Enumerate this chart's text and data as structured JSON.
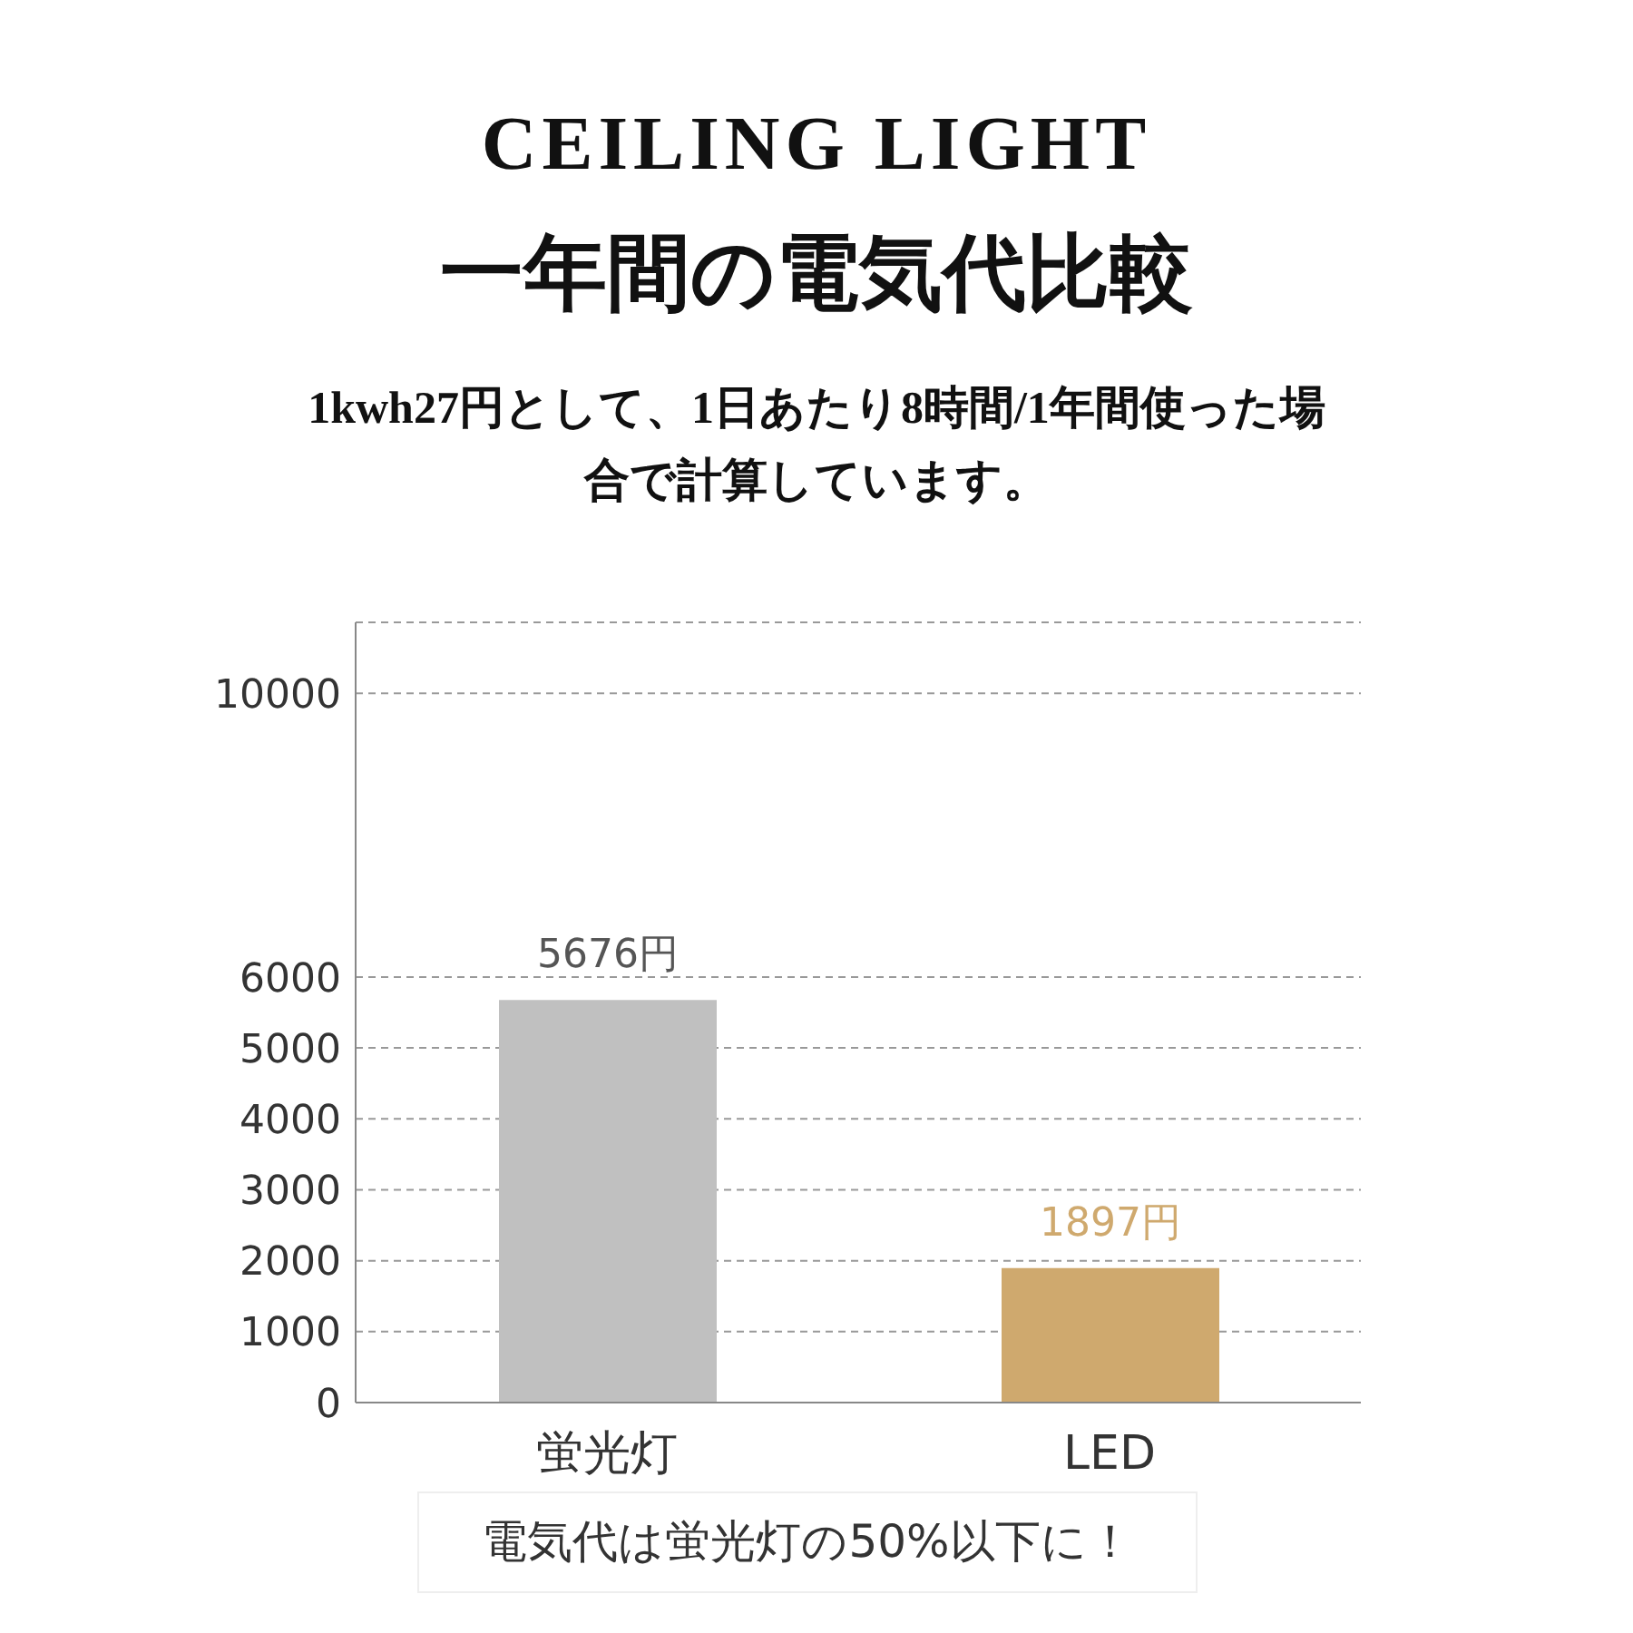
{
  "chart_data": {
    "type": "bar",
    "title": "CEILING LIGHT",
    "subtitle": "一年間の電気代比較",
    "annotations": [
      "1kwh27円として、1日あたり8時間/1年間使った場合で計算しています。",
      "電気代は蛍光灯の50%以下に！"
    ],
    "categories": [
      "蛍光灯",
      "LED"
    ],
    "values": [
      5676,
      1897
    ],
    "colors": [
      "#c0c0c0",
      "#cfa96e"
    ],
    "value_labels": [
      "5676円",
      "1897円"
    ],
    "ylim": [
      0,
      11000
    ],
    "yticks": [
      0,
      1000,
      2000,
      3000,
      4000,
      5000,
      6000,
      10000
    ],
    "grid": "y"
  }
}
